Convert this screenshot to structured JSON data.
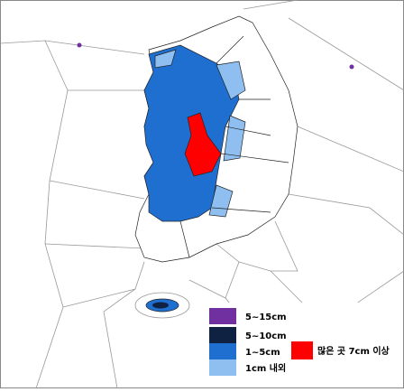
{
  "legend": {
    "items": [
      {
        "label": "5~15cm",
        "color": "#7030a0"
      },
      {
        "label": "5~10cm",
        "color": "#0f2242"
      },
      {
        "label": "1~5cm",
        "color": "#1f6fd0"
      },
      {
        "label": "1cm 내외",
        "color": "#8fbff0"
      }
    ]
  },
  "highlight": {
    "label": "많은 곳 7cm 이상",
    "color": "#ff0000"
  }
}
